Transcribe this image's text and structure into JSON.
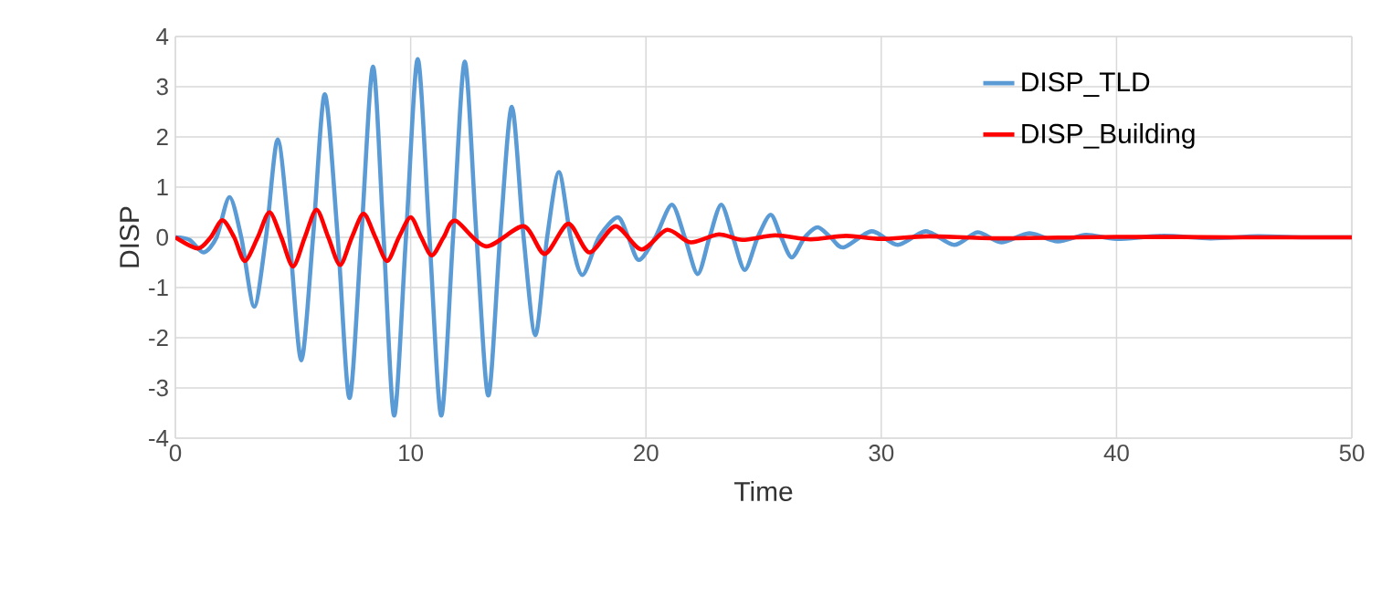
{
  "chart_data": {
    "type": "line",
    "xlabel": "Time",
    "ylabel": "DISP",
    "xlim": [
      0,
      50
    ],
    "ylim": [
      -4,
      4
    ],
    "xticks": [
      0,
      10,
      20,
      30,
      40,
      50
    ],
    "yticks": [
      -4,
      -3,
      -2,
      -1,
      0,
      1,
      2,
      3,
      4
    ],
    "grid": true,
    "legend": "top right",
    "series": [
      {
        "name": "DISP_TLD",
        "color": "#5b9bd5",
        "x": [
          0,
          0.6,
          1.2,
          1.75,
          2.3,
          2.8,
          3.35,
          3.85,
          4.35,
          4.85,
          5.35,
          5.85,
          6.35,
          6.9,
          7.4,
          7.9,
          8.4,
          8.85,
          9.3,
          9.8,
          10.3,
          10.8,
          11.3,
          11.8,
          12.3,
          12.8,
          13.3,
          13.8,
          14.3,
          14.8,
          15.3,
          15.8,
          16.3,
          16.8,
          17.3,
          18.0,
          18.8,
          19.25,
          19.7,
          20.4,
          21.1,
          21.65,
          22.2,
          22.7,
          23.2,
          23.7,
          24.2,
          24.75,
          25.3,
          25.75,
          26.2,
          26.75,
          27.3,
          27.85,
          28.4,
          29.6,
          30.7,
          31.9,
          33.1,
          34.1,
          35.1,
          36.3,
          37.5,
          38.7,
          40,
          42,
          44,
          46,
          48,
          50
        ],
        "values": [
          0,
          -0.05,
          -0.3,
          0,
          0.8,
          0,
          -1.38,
          0,
          1.95,
          0,
          -2.45,
          0,
          2.85,
          0,
          -3.2,
          0,
          3.4,
          0,
          -3.55,
          0,
          3.55,
          0,
          -3.55,
          0,
          3.5,
          0,
          -3.15,
          0,
          2.6,
          0,
          -1.95,
          0,
          1.3,
          0,
          -0.75,
          0,
          0.4,
          0,
          -0.45,
          0,
          0.65,
          0,
          -0.73,
          0,
          0.65,
          0,
          -0.65,
          0,
          0.45,
          0,
          -0.4,
          0,
          0.2,
          0,
          -0.2,
          0.12,
          -0.15,
          0.12,
          -0.15,
          0.1,
          -0.1,
          0.08,
          -0.08,
          0.05,
          -0.03,
          0.03,
          -0.02,
          0.02,
          0,
          0
        ]
      },
      {
        "name": "DISP_Building",
        "color": "#ff0000",
        "x": [
          0,
          0.95,
          1.5,
          2.0,
          2.5,
          2.95,
          3.5,
          4.0,
          4.5,
          5.0,
          5.5,
          6.0,
          6.5,
          7.0,
          7.5,
          8.0,
          8.5,
          9.0,
          9.5,
          10.0,
          10.45,
          10.9,
          11.4,
          11.9,
          13.2,
          14.8,
          15.7,
          16.7,
          17.6,
          18.7,
          19.8,
          20.9,
          21.9,
          23.1,
          24.1,
          25.5,
          27,
          28.5,
          30,
          32,
          35,
          40,
          45,
          50
        ],
        "values": [
          0,
          -0.22,
          0,
          0.34,
          0,
          -0.47,
          0,
          0.5,
          0,
          -0.58,
          0,
          0.55,
          0,
          -0.55,
          0,
          0.47,
          0,
          -0.47,
          0,
          0.4,
          0,
          -0.36,
          0,
          0.33,
          -0.18,
          0.22,
          -0.33,
          0.27,
          -0.3,
          0.22,
          -0.24,
          0.15,
          -0.1,
          0.06,
          -0.05,
          0.04,
          -0.04,
          0.03,
          -0.03,
          0.02,
          -0.02,
          0.01,
          0,
          0
        ]
      }
    ]
  }
}
